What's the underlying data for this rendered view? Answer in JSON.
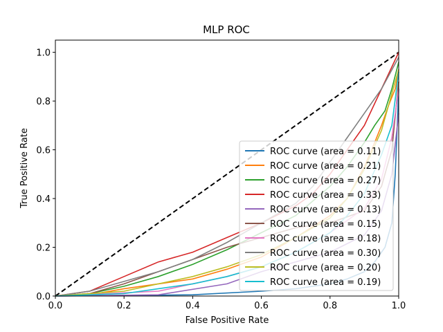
{
  "chart_data": {
    "type": "line",
    "title": "MLP ROC",
    "xlabel": "False Positive Rate",
    "ylabel": "True Positive Rate",
    "xlim": [
      0,
      1
    ],
    "ylim": [
      0,
      1.05
    ],
    "xticks": [
      "0.0",
      "0.2",
      "0.4",
      "0.6",
      "0.8",
      "1.0"
    ],
    "yticks": [
      "0.0",
      "0.2",
      "0.4",
      "0.6",
      "0.8",
      "1.0"
    ],
    "grid": false,
    "legend_position": "lower right",
    "diagonal": {
      "x": [
        0,
        1
      ],
      "y": [
        0,
        1
      ],
      "style": "dashed",
      "color": "#000000"
    },
    "series": [
      {
        "name": "ROC curve (area = 0.11)",
        "color": "#1f77b4",
        "x": [
          0,
          0.4,
          0.6,
          0.7,
          0.8,
          0.85,
          0.9,
          0.93,
          0.96,
          0.98,
          0.99,
          1.0
        ],
        "y": [
          0,
          0.005,
          0.02,
          0.03,
          0.05,
          0.07,
          0.1,
          0.14,
          0.2,
          0.3,
          0.5,
          0.85
        ]
      },
      {
        "name": "ROC curve (area = 0.21)",
        "color": "#ff7f0e",
        "x": [
          0,
          0.1,
          0.2,
          0.3,
          0.4,
          0.5,
          0.6,
          0.7,
          0.8,
          0.85,
          0.9,
          0.93,
          0.95,
          0.97,
          0.99,
          1.0
        ],
        "y": [
          0,
          0.005,
          0.03,
          0.05,
          0.07,
          0.11,
          0.16,
          0.24,
          0.33,
          0.4,
          0.53,
          0.63,
          0.7,
          0.78,
          0.85,
          0.93
        ]
      },
      {
        "name": "ROC curve (area = 0.27)",
        "color": "#2ca02c",
        "x": [
          0,
          0.1,
          0.2,
          0.3,
          0.4,
          0.5,
          0.6,
          0.7,
          0.8,
          0.85,
          0.9,
          0.93,
          0.96,
          0.98,
          1.0
        ],
        "y": [
          0,
          0.01,
          0.04,
          0.08,
          0.13,
          0.19,
          0.26,
          0.33,
          0.45,
          0.53,
          0.63,
          0.7,
          0.76,
          0.85,
          0.96
        ]
      },
      {
        "name": "ROC curve (area = 0.33)",
        "color": "#d62728",
        "x": [
          0,
          0.1,
          0.2,
          0.3,
          0.4,
          0.5,
          0.6,
          0.7,
          0.75,
          0.8,
          0.85,
          0.9,
          0.95,
          1.0
        ],
        "y": [
          0,
          0.02,
          0.08,
          0.14,
          0.18,
          0.24,
          0.3,
          0.37,
          0.42,
          0.5,
          0.6,
          0.7,
          0.85,
          1.0
        ]
      },
      {
        "name": "ROC curve (area = 0.13)",
        "color": "#9467bd",
        "x": [
          0,
          0.3,
          0.5,
          0.6,
          0.7,
          0.8,
          0.9,
          0.95,
          0.98,
          1.0
        ],
        "y": [
          0,
          0.005,
          0.05,
          0.1,
          0.14,
          0.18,
          0.25,
          0.35,
          0.5,
          0.75
        ]
      },
      {
        "name": "ROC curve (area = 0.15)",
        "color": "#8c564b",
        "x": [
          0,
          0.1,
          0.2,
          0.3,
          0.4,
          0.5,
          0.6,
          0.7,
          0.8,
          0.9,
          0.95,
          0.98,
          1.0
        ],
        "y": [
          0,
          0.01,
          0.05,
          0.1,
          0.15,
          0.2,
          0.24,
          0.28,
          0.3,
          0.35,
          0.45,
          0.6,
          0.88
        ]
      },
      {
        "name": "ROC curve (area = 0.18)",
        "color": "#e377c2",
        "x": [
          0,
          0.3,
          0.5,
          0.6,
          0.7,
          0.8,
          0.9,
          0.95,
          0.98,
          1.0
        ],
        "y": [
          0,
          0.02,
          0.08,
          0.12,
          0.18,
          0.26,
          0.36,
          0.48,
          0.65,
          0.85
        ]
      },
      {
        "name": "ROC curve (area = 0.30)",
        "color": "#7f7f7f",
        "x": [
          0,
          0.1,
          0.2,
          0.3,
          0.4,
          0.5,
          0.6,
          0.7,
          0.75,
          0.8,
          0.85,
          0.9,
          0.95,
          1.0
        ],
        "y": [
          0,
          0.02,
          0.06,
          0.1,
          0.15,
          0.22,
          0.3,
          0.38,
          0.45,
          0.55,
          0.65,
          0.75,
          0.85,
          0.98
        ]
      },
      {
        "name": "ROC curve (area = 0.20)",
        "color": "#bcbd22",
        "x": [
          0,
          0.2,
          0.3,
          0.4,
          0.5,
          0.6,
          0.7,
          0.8,
          0.85,
          0.9,
          0.95,
          1.0
        ],
        "y": [
          0,
          0.02,
          0.05,
          0.08,
          0.12,
          0.17,
          0.24,
          0.32,
          0.4,
          0.52,
          0.68,
          0.93
        ]
      },
      {
        "name": "ROC curve (area = 0.19)",
        "color": "#17becf",
        "x": [
          0,
          0.2,
          0.3,
          0.4,
          0.5,
          0.6,
          0.7,
          0.8,
          0.85,
          0.9,
          0.95,
          0.98,
          1.0
        ],
        "y": [
          0,
          0.01,
          0.03,
          0.05,
          0.08,
          0.12,
          0.18,
          0.26,
          0.33,
          0.42,
          0.58,
          0.7,
          0.92
        ]
      }
    ]
  }
}
